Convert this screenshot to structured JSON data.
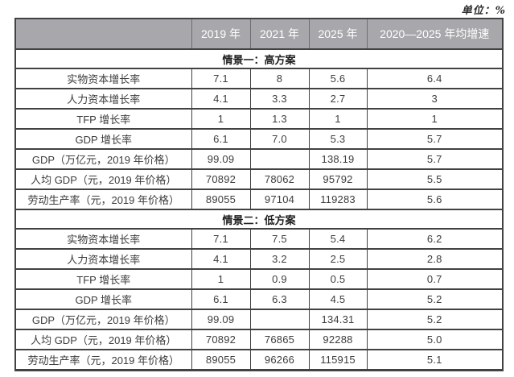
{
  "unit_label": "单位：%",
  "colors": {
    "header_background": "#a8a8ac",
    "header_text": "#ffffff",
    "border": "#424242",
    "body_text": "#3d3d3d",
    "section_text": "#1f1f1f",
    "page_background": "#ffffff"
  },
  "table": {
    "columns": [
      "",
      "2019 年",
      "2021 年",
      "2025 年",
      "2020—2025 年均增速"
    ],
    "sections": [
      {
        "title": "情景一：高方案",
        "rows": [
          {
            "label": "实物资本增长率",
            "values": [
              "7.1",
              "8",
              "5.6",
              "6.4"
            ]
          },
          {
            "label": "人力资本增长率",
            "values": [
              "4.1",
              "3.3",
              "2.7",
              "3"
            ]
          },
          {
            "label": "TFP 增长率",
            "values": [
              "1",
              "1.3",
              "1",
              "1"
            ]
          },
          {
            "label": "GDP 增长率",
            "values": [
              "6.1",
              "7.0",
              "5.3",
              "5.7"
            ]
          },
          {
            "label": "GDP（万亿元，2019 年价格）",
            "values": [
              "99.09",
              "",
              "138.19",
              "5.7"
            ]
          },
          {
            "label": "人均 GDP（元，2019 年价格）",
            "values": [
              "70892",
              "78062",
              "95792",
              "5.5"
            ]
          },
          {
            "label": "劳动生产率（元，2019 年价格）",
            "values": [
              "89055",
              "97104",
              "119283",
              "5.6"
            ]
          }
        ]
      },
      {
        "title": "情景二：低方案",
        "rows": [
          {
            "label": "实物资本增长率",
            "values": [
              "7.1",
              "7.5",
              "5.4",
              "6.2"
            ]
          },
          {
            "label": "人力资本增长率",
            "values": [
              "4.1",
              "3.2",
              "2.5",
              "2.8"
            ]
          },
          {
            "label": "TFP 增长率",
            "values": [
              "1",
              "0.9",
              "0.5",
              "0.7"
            ]
          },
          {
            "label": "GDP 增长率",
            "values": [
              "6.1",
              "6.3",
              "4.5",
              "5.2"
            ]
          },
          {
            "label": "GDP（万亿元，2019 年价格）",
            "values": [
              "99.09",
              "",
              "134.31",
              "5.2"
            ]
          },
          {
            "label": "人均 GDP（元，2019 年价格）",
            "values": [
              "70892",
              "76865",
              "92288",
              "5.0"
            ]
          },
          {
            "label": "劳动生产率（元，2019 年价格）",
            "values": [
              "89055",
              "96266",
              "115915",
              "5.1"
            ]
          }
        ]
      }
    ]
  }
}
